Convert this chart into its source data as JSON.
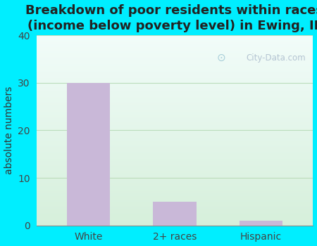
{
  "categories": [
    "White",
    "2+ races",
    "Hispanic"
  ],
  "values": [
    30,
    5,
    1
  ],
  "bar_color": "#c9b8d8",
  "title_line1": "Breakdown of poor residents within races",
  "title_line2": "(income below poverty level) in Ewing, IL",
  "ylabel": "absolute numbers",
  "ylim": [
    0,
    40
  ],
  "yticks": [
    0,
    10,
    20,
    30,
    40
  ],
  "background_outer": "#00eeff",
  "background_plot_topleft": "#e8f5f0",
  "background_plot_topright": "#f5fffe",
  "background_plot_bottom": "#d8eedc",
  "grid_color": "#bbddbb",
  "title_fontsize": 13,
  "ylabel_fontsize": 10,
  "tick_fontsize": 10,
  "watermark_text": "City-Data.com",
  "watermark_color": "#aabbcc"
}
